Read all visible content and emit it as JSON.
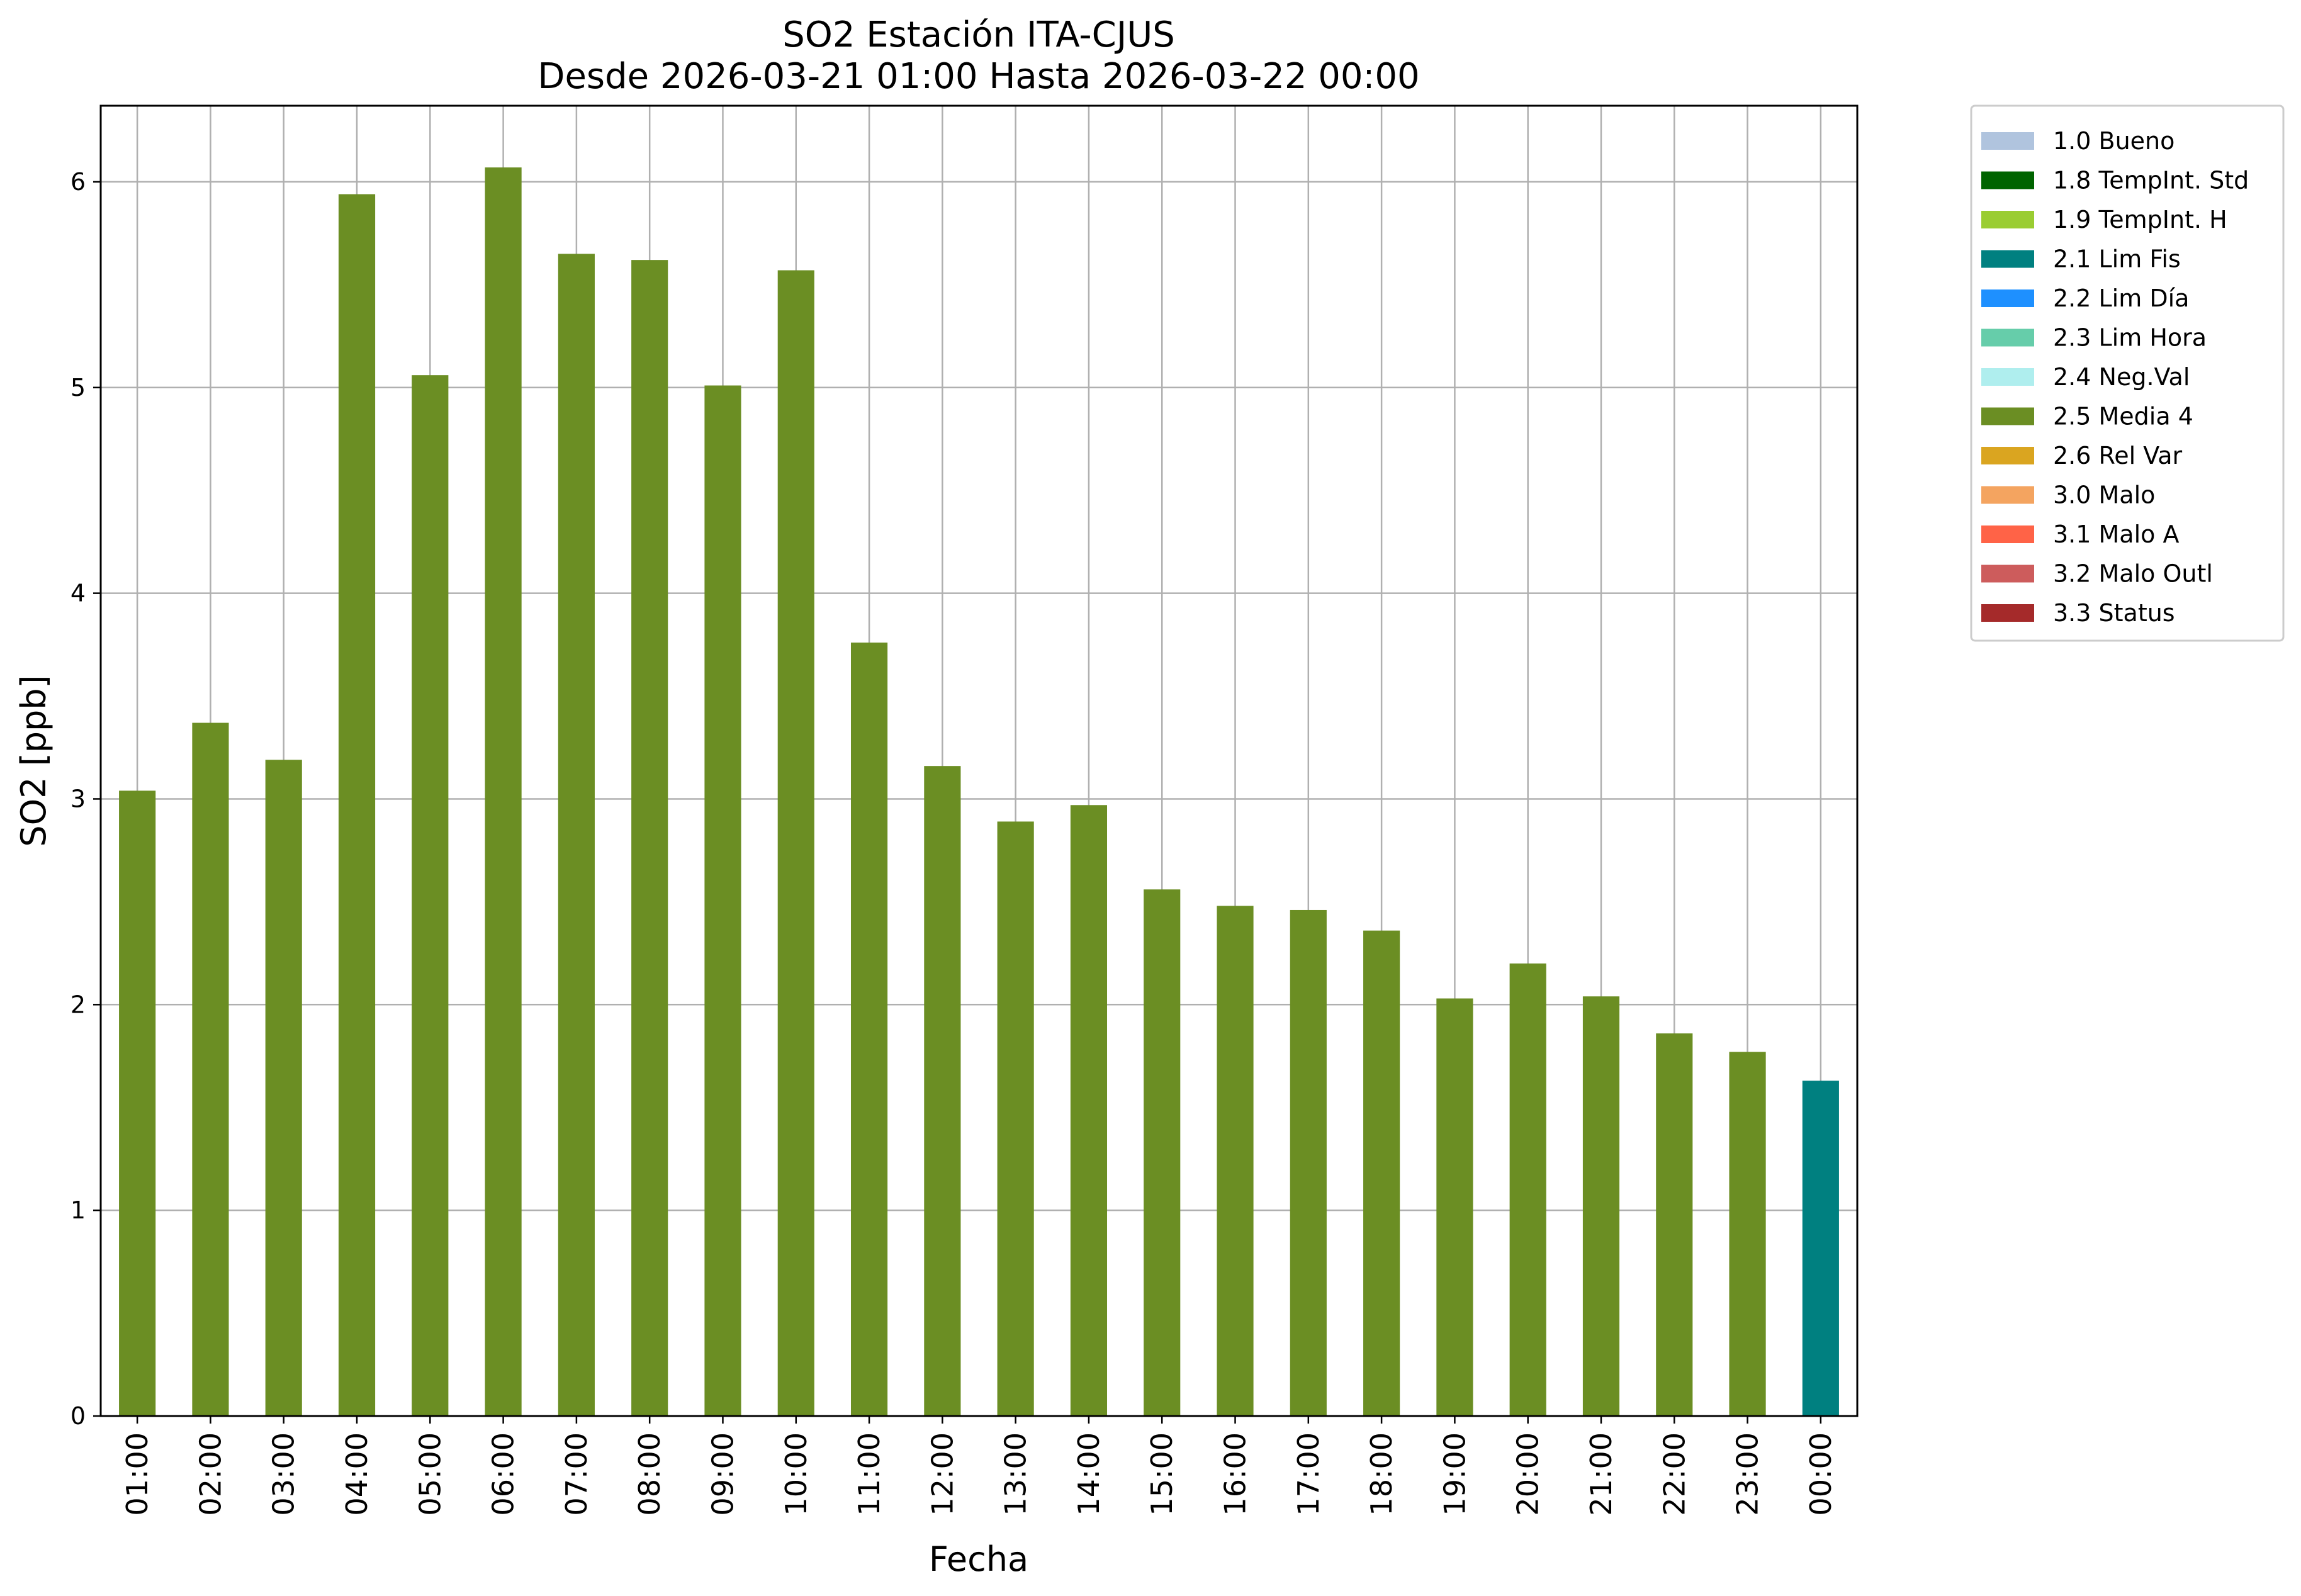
{
  "chart_data": {
    "type": "bar",
    "title_line1": "SO2 Estación ITA-CJUS",
    "title_line2": "Desde 2026-03-21 01:00 Hasta 2026-03-22 00:00",
    "xlabel": "Fecha",
    "ylabel": "SO2 [ppb]",
    "ylim": [
      0,
      6.37
    ],
    "yticks": [
      0,
      1,
      2,
      3,
      4,
      5,
      6
    ],
    "grid": true,
    "legend_position": "outside-right",
    "categories": [
      "01:00",
      "02:00",
      "03:00",
      "04:00",
      "05:00",
      "06:00",
      "07:00",
      "08:00",
      "09:00",
      "10:00",
      "11:00",
      "12:00",
      "13:00",
      "14:00",
      "15:00",
      "16:00",
      "17:00",
      "18:00",
      "19:00",
      "20:00",
      "21:00",
      "22:00",
      "23:00",
      "00:00"
    ],
    "values": [
      3.04,
      3.37,
      3.19,
      5.94,
      5.06,
      6.07,
      5.65,
      5.62,
      5.01,
      5.57,
      3.76,
      3.16,
      2.89,
      2.97,
      2.56,
      2.48,
      2.46,
      2.36,
      2.03,
      2.2,
      2.04,
      1.86,
      1.77,
      1.63
    ],
    "flags": [
      "2.5 Media 4",
      "2.5 Media 4",
      "2.5 Media 4",
      "2.5 Media 4",
      "2.5 Media 4",
      "2.5 Media 4",
      "2.5 Media 4",
      "2.5 Media 4",
      "2.5 Media 4",
      "2.5 Media 4",
      "2.5 Media 4",
      "2.5 Media 4",
      "2.5 Media 4",
      "2.5 Media 4",
      "2.5 Media 4",
      "2.5 Media 4",
      "2.5 Media 4",
      "2.5 Media 4",
      "2.5 Media 4",
      "2.5 Media 4",
      "2.5 Media 4",
      "2.5 Media 4",
      "2.5 Media 4",
      "2.1 Lim Fis"
    ],
    "legend": [
      {
        "label": "1.0 Bueno",
        "color": "#b0c4de"
      },
      {
        "label": "1.8 TempInt. Std",
        "color": "#006400"
      },
      {
        "label": "1.9 TempInt. H",
        "color": "#9acd32"
      },
      {
        "label": "2.1 Lim Fis",
        "color": "#008080"
      },
      {
        "label": "2.2 Lim Día",
        "color": "#1e90ff"
      },
      {
        "label": "2.3 Lim Hora",
        "color": "#66cdaa"
      },
      {
        "label": "2.4 Neg.Val",
        "color": "#afeeee"
      },
      {
        "label": "2.5 Media 4",
        "color": "#6b8e23"
      },
      {
        "label": "2.6 Rel Var",
        "color": "#daa520"
      },
      {
        "label": "3.0 Malo",
        "color": "#f4a460"
      },
      {
        "label": "3.1 Malo A",
        "color": "#ff6347"
      },
      {
        "label": "3.2 Malo Outl",
        "color": "#cd5c5c"
      },
      {
        "label": "3.3 Status",
        "color": "#a52a2a"
      }
    ]
  }
}
